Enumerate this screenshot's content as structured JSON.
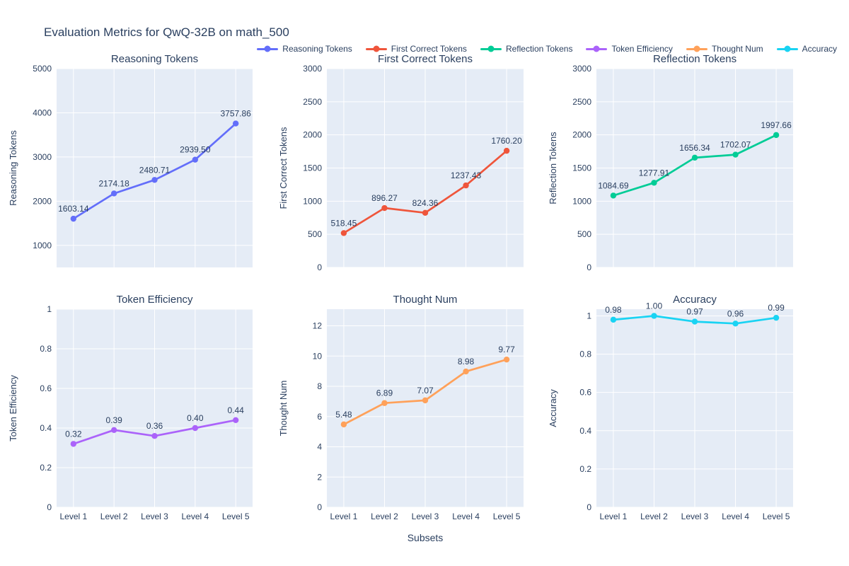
{
  "title": "Evaluation Metrics for QwQ-32B on math_500",
  "xlabel": "Subsets",
  "categories": [
    "Level 1",
    "Level 2",
    "Level 3",
    "Level 4",
    "Level 5"
  ],
  "theme": {
    "text_color": "#2a3f5f",
    "plot_bg": "#E5ECF6",
    "grid_color": "#ffffff"
  },
  "chart_data": [
    {
      "type": "line",
      "title": "Reasoning Tokens",
      "ylabel": "Reasoning Tokens",
      "color": "#636EFA",
      "categories": [
        "Level 1",
        "Level 2",
        "Level 3",
        "Level 4",
        "Level 5"
      ],
      "values": [
        1603.14,
        2174.18,
        2480.71,
        2939.5,
        3757.86
      ],
      "point_labels": [
        "1603.14",
        "2174.18",
        "2480.71",
        "2939.50",
        "3757.86"
      ],
      "ylim": [
        500,
        5000
      ],
      "yticks": [
        1000,
        2000,
        3000,
        4000,
        5000
      ],
      "ytick_labels": [
        "1000",
        "2000",
        "3000",
        "4000",
        "5000"
      ],
      "grid": true
    },
    {
      "type": "line",
      "title": "First Correct Tokens",
      "ylabel": "First Correct Tokens",
      "color": "#EF553B",
      "categories": [
        "Level 1",
        "Level 2",
        "Level 3",
        "Level 4",
        "Level 5"
      ],
      "values": [
        518.45,
        896.27,
        824.36,
        1237.43,
        1760.2
      ],
      "point_labels": [
        "518.45",
        "896.27",
        "824.36",
        "1237.43",
        "1760.20"
      ],
      "ylim": [
        0,
        3000
      ],
      "yticks": [
        0,
        500,
        1000,
        1500,
        2000,
        2500,
        3000
      ],
      "ytick_labels": [
        "0",
        "500",
        "1000",
        "1500",
        "2000",
        "2500",
        "3000"
      ],
      "grid": true
    },
    {
      "type": "line",
      "title": "Reflection Tokens",
      "ylabel": "Reflection Tokens",
      "color": "#00CC96",
      "categories": [
        "Level 1",
        "Level 2",
        "Level 3",
        "Level 4",
        "Level 5"
      ],
      "values": [
        1084.69,
        1277.91,
        1656.34,
        1702.07,
        1997.66
      ],
      "point_labels": [
        "1084.69",
        "1277.91",
        "1656.34",
        "1702.07",
        "1997.66"
      ],
      "ylim": [
        0,
        3000
      ],
      "yticks": [
        0,
        500,
        1000,
        1500,
        2000,
        2500,
        3000
      ],
      "ytick_labels": [
        "0",
        "500",
        "1000",
        "1500",
        "2000",
        "2500",
        "3000"
      ],
      "grid": true
    },
    {
      "type": "line",
      "title": "Token Efficiency",
      "ylabel": "Token Efficiency",
      "color": "#AB63FA",
      "categories": [
        "Level 1",
        "Level 2",
        "Level 3",
        "Level 4",
        "Level 5"
      ],
      "values": [
        0.32,
        0.39,
        0.36,
        0.4,
        0.44
      ],
      "point_labels": [
        "0.32",
        "0.39",
        "0.36",
        "0.40",
        "0.44"
      ],
      "ylim": [
        0,
        1
      ],
      "yticks": [
        0,
        0.2,
        0.4,
        0.6,
        0.8,
        1
      ],
      "ytick_labels": [
        "0",
        "0.2",
        "0.4",
        "0.6",
        "0.8",
        "1"
      ],
      "grid": true
    },
    {
      "type": "line",
      "title": "Thought Num",
      "ylabel": "Thought Num",
      "color": "#FFA15A",
      "categories": [
        "Level 1",
        "Level 2",
        "Level 3",
        "Level 4",
        "Level 5"
      ],
      "values": [
        5.48,
        6.89,
        7.07,
        8.98,
        9.77
      ],
      "point_labels": [
        "5.48",
        "6.89",
        "7.07",
        "8.98",
        "9.77"
      ],
      "ylim": [
        0,
        13.1
      ],
      "yticks": [
        0,
        2,
        4,
        6,
        8,
        10,
        12
      ],
      "ytick_labels": [
        "0",
        "2",
        "4",
        "6",
        "8",
        "10",
        "12"
      ],
      "grid": true
    },
    {
      "type": "line",
      "title": "Accuracy",
      "ylabel": "Accuracy",
      "color": "#19D3F3",
      "categories": [
        "Level 1",
        "Level 2",
        "Level 3",
        "Level 4",
        "Level 5"
      ],
      "values": [
        0.98,
        1.0,
        0.97,
        0.96,
        0.99
      ],
      "point_labels": [
        "0.98",
        "1.00",
        "0.97",
        "0.96",
        "0.99"
      ],
      "ylim": [
        0,
        1.035
      ],
      "yticks": [
        0,
        0.2,
        0.4,
        0.6,
        0.8,
        1
      ],
      "ytick_labels": [
        "0",
        "0.2",
        "0.4",
        "0.6",
        "0.8",
        "1"
      ],
      "grid": true
    }
  ]
}
